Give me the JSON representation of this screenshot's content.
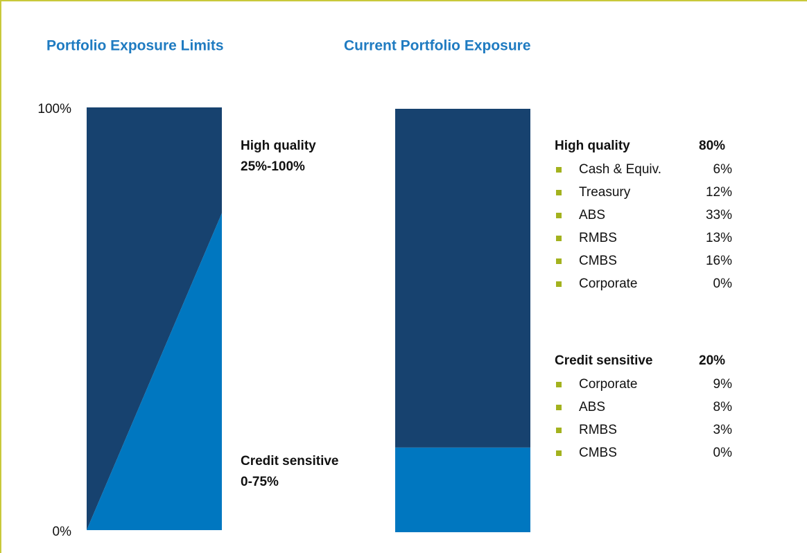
{
  "chart_data": [
    {
      "type": "limits",
      "title": "Portfolio Exposure Limits",
      "ylim": [
        0,
        100
      ],
      "yticks": [
        {
          "value": 0,
          "label": "0%"
        },
        {
          "value": 100,
          "label": "100%"
        }
      ],
      "segments": [
        {
          "name": "High quality",
          "range": [
            25,
            100
          ],
          "range_label": "25%-100%",
          "color": "#17426f"
        },
        {
          "name": "Credit sensitive",
          "range": [
            0,
            75
          ],
          "range_label": "0-75%",
          "color": "#0077c0"
        }
      ]
    },
    {
      "type": "stacked_bar",
      "title": "Current Portfolio Exposure",
      "ylim": [
        0,
        100
      ],
      "bullet_color": "#a3b21e",
      "series": [
        {
          "name": "High quality",
          "values": [
            80
          ],
          "value_labels": [
            "80%"
          ],
          "color": "#17426f",
          "items": [
            {
              "name": "Cash & Equiv.",
              "value": "6%"
            },
            {
              "name": "Treasury",
              "value": "12%"
            },
            {
              "name": "ABS",
              "value": "33%"
            },
            {
              "name": "RMBS",
              "value": "13%"
            },
            {
              "name": "CMBS",
              "value": "16%"
            },
            {
              "name": "Corporate",
              "value": "0%"
            }
          ]
        },
        {
          "name": "Credit sensitive",
          "values": [
            20
          ],
          "value_labels": [
            "20%"
          ],
          "color": "#0077c0",
          "items": [
            {
              "name": "Corporate",
              "value": "9%"
            },
            {
              "name": "ABS",
              "value": "8%"
            },
            {
              "name": "RMBS",
              "value": "3%"
            },
            {
              "name": "CMBS",
              "value": "0%"
            }
          ]
        }
      ]
    }
  ]
}
